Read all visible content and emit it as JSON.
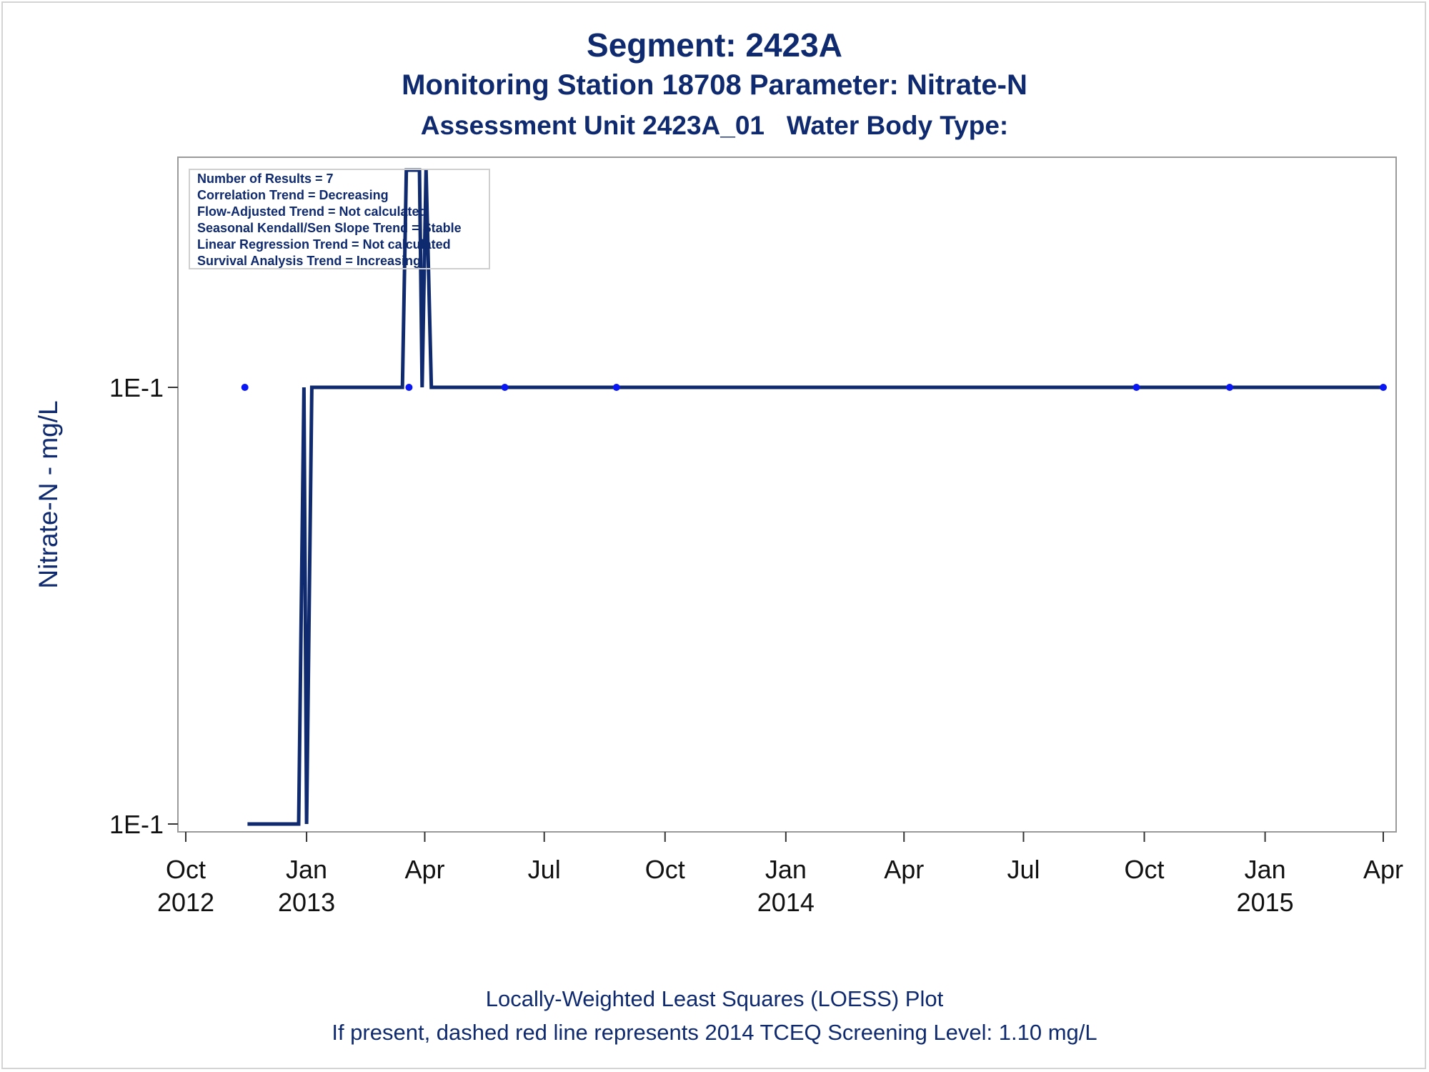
{
  "title": "Segment: 2423A",
  "subtitle1": "Monitoring Station 18708 Parameter: Nitrate-N",
  "subtitle2": "Assessment Unit 2423A_01   Water Body Type:",
  "footnote1": "Locally-Weighted Least Squares (LOESS) Plot",
  "footnote2": "If present, dashed red line represents 2014 TCEQ Screening Level: 1.10 mg/L",
  "legend": {
    "lines": [
      "Number of Results = 7",
      "Correlation Trend = Decreasing",
      "Flow-Adjusted Trend = Not calculated",
      "Seasonal Kendall/Sen Slope Trend = Stable",
      "Linear Regression Trend = Not calculated",
      "Survival Analysis Trend = Increasing"
    ]
  },
  "colors": {
    "title": "#0f2a6e",
    "line": "#0f2a6e",
    "points": "#0a18f5",
    "frame": "#9a9a9a"
  },
  "chart_data": {
    "type": "line",
    "ylabel": "Nitrate-N - mg/L",
    "y_tick_labels": [
      "1E-1",
      "1E-1"
    ],
    "y_scale": "log",
    "x_ticks": [
      {
        "month": "Oct",
        "year": "2012",
        "date": "2012-10-01"
      },
      {
        "month": "Jan",
        "year": "2013",
        "date": "2013-01-01"
      },
      {
        "month": "Apr",
        "year": "",
        "date": "2013-04-01"
      },
      {
        "month": "Jul",
        "year": "",
        "date": "2013-07-01"
      },
      {
        "month": "Oct",
        "year": "",
        "date": "2013-10-01"
      },
      {
        "month": "Jan",
        "year": "2014",
        "date": "2014-01-01"
      },
      {
        "month": "Apr",
        "year": "",
        "date": "2014-04-01"
      },
      {
        "month": "Jul",
        "year": "",
        "date": "2014-07-01"
      },
      {
        "month": "Oct",
        "year": "",
        "date": "2014-10-01"
      },
      {
        "month": "Jan",
        "year": "2015",
        "date": "2015-01-01"
      },
      {
        "month": "Apr",
        "year": "",
        "date": "2015-04-01"
      }
    ],
    "points": [
      {
        "date": "2012-11-15",
        "value": 0.1
      },
      {
        "date": "2013-03-20",
        "value": 0.1
      },
      {
        "date": "2013-06-01",
        "value": 0.1
      },
      {
        "date": "2013-08-25",
        "value": 0.1
      },
      {
        "date": "2014-09-25",
        "value": 0.1
      },
      {
        "date": "2014-12-05",
        "value": 0.1
      },
      {
        "date": "2015-04-01",
        "value": 0.1
      }
    ],
    "loess_series": [
      {
        "date": "2012-11-17",
        "level": "low"
      },
      {
        "date": "2012-12-26",
        "level": "low"
      },
      {
        "date": "2012-12-30",
        "level": "mid"
      },
      {
        "date": "2013-01-01",
        "level": "low"
      },
      {
        "date": "2013-01-05",
        "level": "mid"
      },
      {
        "date": "2013-03-15",
        "level": "mid"
      },
      {
        "date": "2013-03-18",
        "level": "high"
      },
      {
        "date": "2013-03-28",
        "level": "high"
      },
      {
        "date": "2013-03-30",
        "level": "mid"
      },
      {
        "date": "2013-04-02",
        "level": "high"
      },
      {
        "date": "2013-04-06",
        "level": "mid"
      },
      {
        "date": "2015-04-01",
        "level": "mid"
      }
    ],
    "grid": false,
    "legend_position": "top-left"
  }
}
